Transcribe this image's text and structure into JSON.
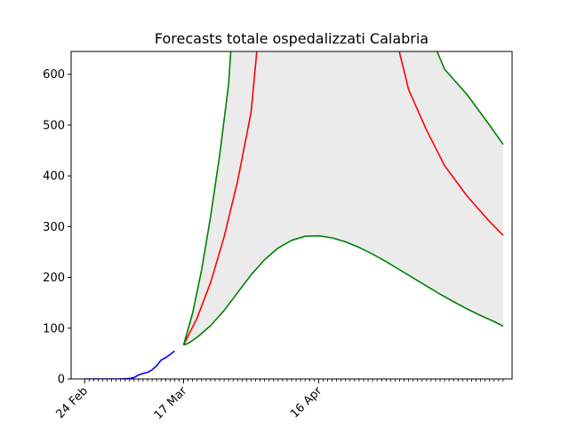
{
  "chart_data": {
    "type": "line",
    "title": "Forecasts totale ospedalizzati Calabria",
    "xlabel": "",
    "ylabel": "",
    "x_tick_labels": [
      {
        "date": "2020-02-24",
        "label": "24 Feb"
      },
      {
        "date": "2020-03-17",
        "label": "17 Mar"
      },
      {
        "date": "2020-04-16",
        "label": "16 Apr"
      }
    ],
    "x_range": [
      "2020-02-21",
      "2020-05-29"
    ],
    "ylim": [
      0,
      645
    ],
    "y_ticks": [
      0,
      100,
      200,
      300,
      400,
      500,
      600
    ],
    "grid": false,
    "legend": false,
    "colors": {
      "observed": "#0000ff",
      "forecast": "#ff0000",
      "bounds": "#008000",
      "band": "#ebebeb"
    },
    "series": [
      {
        "key": "observed",
        "x": [
          "2020-02-24",
          "2020-02-26",
          "2020-02-28",
          "2020-03-01",
          "2020-03-03",
          "2020-03-05",
          "2020-03-06",
          "2020-03-07",
          "2020-03-08",
          "2020-03-09",
          "2020-03-10",
          "2020-03-11",
          "2020-03-12",
          "2020-03-13",
          "2020-03-14",
          "2020-03-15"
        ],
        "values": [
          0,
          0,
          0,
          0,
          0,
          1,
          3,
          8,
          11,
          13,
          18,
          26,
          37,
          42,
          48,
          55
        ]
      },
      {
        "key": "forecast",
        "x": [
          "2020-03-17",
          "2020-03-20",
          "2020-03-23",
          "2020-03-26",
          "2020-03-29",
          "2020-04-01",
          "2020-04-03",
          "2020-05-02",
          "2020-05-06",
          "2020-05-10",
          "2020-05-14",
          "2020-05-19",
          "2020-05-24",
          "2020-05-27"
        ],
        "values": [
          67,
          120,
          190,
          280,
          390,
          525,
          645,
          645,
          570,
          490,
          420,
          360,
          310,
          283
        ]
      },
      {
        "key": "upper",
        "x": [
          "2020-03-17",
          "2020-03-19",
          "2020-03-21",
          "2020-03-23",
          "2020-03-25",
          "2020-03-27",
          "2020-03-28",
          "2020-05-09",
          "2020-05-14",
          "2020-05-19",
          "2020-05-24",
          "2020-05-27"
        ],
        "values": [
          67,
          130,
          215,
          320,
          440,
          580,
          645,
          645,
          610,
          560,
          500,
          462
        ]
      },
      {
        "key": "lower",
        "x": [
          "2020-03-17",
          "2020-03-18",
          "2020-03-20",
          "2020-03-23",
          "2020-03-26",
          "2020-03-29",
          "2020-04-01",
          "2020-04-04",
          "2020-04-07",
          "2020-04-10",
          "2020-04-13",
          "2020-04-16",
          "2020-04-19",
          "2020-04-22",
          "2020-04-25",
          "2020-04-28",
          "2020-05-01",
          "2020-05-04",
          "2020-05-07",
          "2020-05-10",
          "2020-05-13",
          "2020-05-16",
          "2020-05-19",
          "2020-05-22",
          "2020-05-25",
          "2020-05-27"
        ],
        "values": [
          67,
          70,
          82,
          105,
          135,
          170,
          205,
          235,
          258,
          273,
          281,
          282,
          278,
          270,
          259,
          246,
          231,
          215,
          199,
          183,
          167,
          152,
          138,
          125,
          113,
          104
        ]
      }
    ]
  }
}
